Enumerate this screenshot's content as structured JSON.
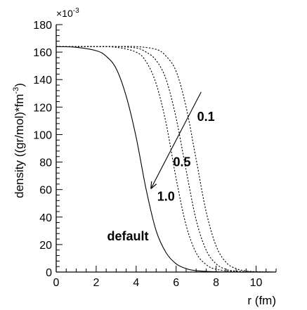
{
  "chart_data": {
    "type": "line",
    "xlabel": "r (fm)",
    "ylabel": "density ((gr/mol)*fm",
    "ylabel_sup": "-3",
    "ylabel_close": ")",
    "y_scale_label": "×10",
    "y_scale_exp": "-3",
    "xlim": [
      0,
      11
    ],
    "ylim": [
      0,
      180
    ],
    "x_ticks": [
      0,
      2,
      4,
      6,
      8,
      10
    ],
    "y_ticks": [
      0,
      20,
      40,
      60,
      80,
      100,
      120,
      140,
      160,
      180
    ],
    "grid": false,
    "series": [
      {
        "name": "default",
        "style": "solid",
        "x": [
          0,
          1,
          2,
          2.5,
          3,
          3.5,
          4,
          4.5,
          5,
          5.5,
          6,
          6.5,
          7,
          8,
          9,
          10,
          11
        ],
        "y": [
          164,
          163.5,
          161,
          157,
          148,
          128,
          98,
          60,
          30,
          14,
          6,
          2.5,
          1,
          0.2,
          0,
          0,
          0
        ]
      },
      {
        "name": "1.0",
        "style": "dotted",
        "x": [
          0,
          1,
          2,
          3,
          4,
          4.5,
          5,
          5.5,
          6,
          6.5,
          7,
          7.5,
          8,
          9,
          10,
          11
        ],
        "y": [
          164,
          164,
          164,
          163.5,
          160,
          153,
          137,
          108,
          68,
          34,
          14,
          5.5,
          2,
          0.3,
          0,
          0
        ]
      },
      {
        "name": "0.5",
        "style": "dotted",
        "x": [
          0,
          1,
          2,
          3,
          4,
          4.5,
          5,
          5.5,
          6,
          6.5,
          7,
          7.5,
          8,
          8.5,
          9,
          10,
          11
        ],
        "y": [
          164,
          164,
          164,
          164,
          163,
          160,
          154,
          140,
          112,
          74,
          38,
          16,
          6,
          2,
          0.7,
          0.1,
          0
        ]
      },
      {
        "name": "0.1",
        "style": "dotted",
        "x": [
          0,
          1,
          2,
          3,
          4,
          5,
          5.5,
          6,
          6.5,
          7,
          7.5,
          8,
          8.5,
          9,
          9.5,
          10,
          11
        ],
        "y": [
          164,
          164,
          164,
          164,
          164,
          162,
          157,
          146,
          120,
          82,
          44,
          19,
          7,
          2.5,
          0.8,
          0.3,
          0
        ]
      }
    ],
    "annotations": [
      {
        "text": "0.1",
        "x": 7.05,
        "y": 110
      },
      {
        "text": "0.5",
        "x": 5.85,
        "y": 77
      },
      {
        "text": "1.0",
        "x": 5.05,
        "y": 52
      },
      {
        "text": "default",
        "x": 2.55,
        "y": 23
      }
    ],
    "arrow": {
      "from": [
        7.25,
        131
      ],
      "to": [
        4.75,
        61
      ]
    }
  }
}
